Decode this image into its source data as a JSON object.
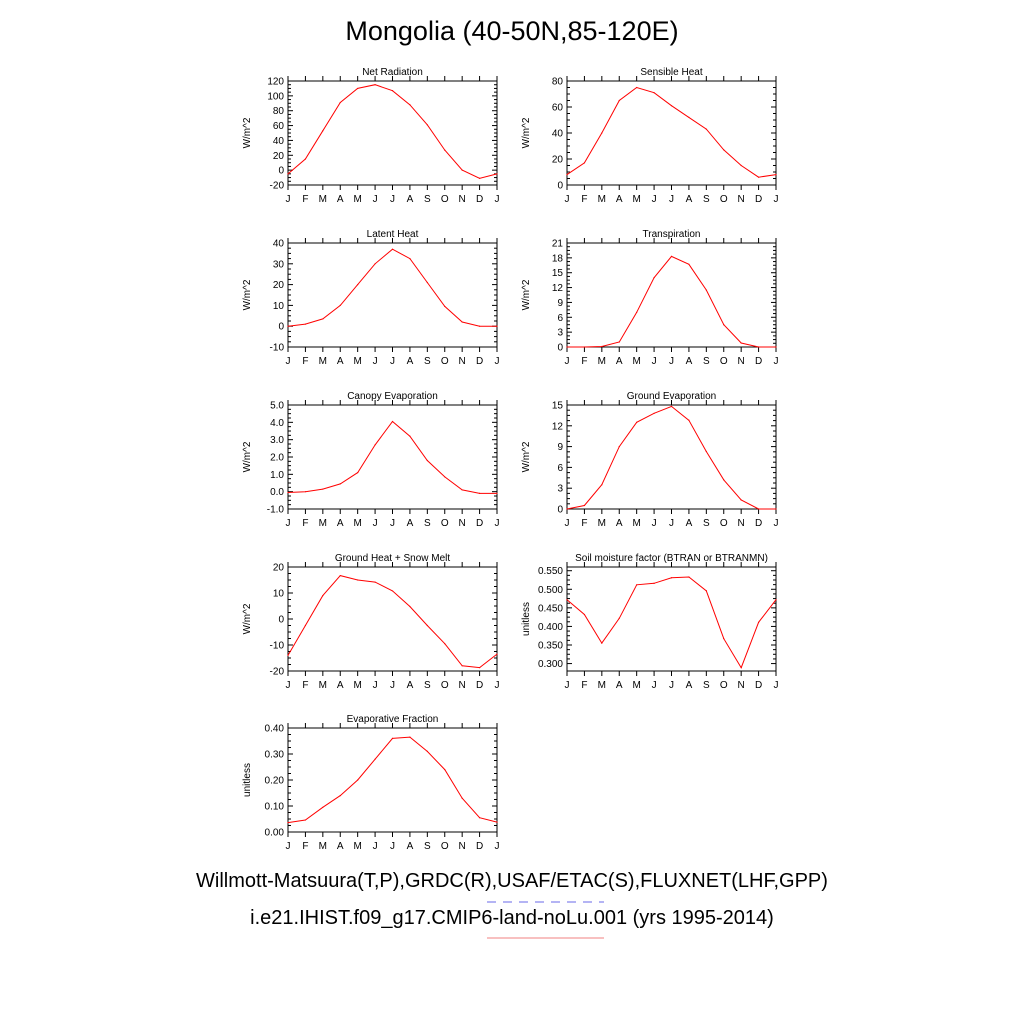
{
  "figure": {
    "title": "Mongolia (40-50N,85-120E)",
    "legend": [
      {
        "text": "Willmott-Matsuura(T,P),GRDC(R),USAF/ETAC(S),FLUXNET(LHF,GPP)",
        "line_color": "#6a6ae8",
        "dashed": true
      },
      {
        "text": "i.e21.IHIST.f09_g17.CMIP6-land-noLu.001 (yrs 1995-2014)",
        "line_color": "#f08080",
        "dashed": false
      }
    ],
    "series_color": "#ff0000"
  },
  "chart_data": [
    {
      "type": "line",
      "title": "Net Radiation",
      "ylabel": "W/m^2",
      "categories": [
        "J",
        "F",
        "M",
        "A",
        "M",
        "J",
        "J",
        "A",
        "S",
        "O",
        "N",
        "D",
        "J"
      ],
      "values": [
        -5,
        15,
        53,
        91,
        110,
        115,
        107,
        88,
        61,
        27,
        0,
        -11,
        -5
      ],
      "ylim": [
        -20,
        120
      ],
      "yticks": [
        "-20",
        "0",
        "20",
        "40",
        "60",
        "80",
        "100",
        "120"
      ]
    },
    {
      "type": "line",
      "title": "Sensible Heat",
      "ylabel": "W/m^2",
      "categories": [
        "J",
        "F",
        "M",
        "A",
        "M",
        "J",
        "J",
        "A",
        "S",
        "O",
        "N",
        "D",
        "J"
      ],
      "values": [
        8,
        17,
        40,
        65,
        75,
        71,
        61,
        52,
        43,
        27,
        15,
        6,
        8
      ],
      "ylim": [
        0,
        80
      ],
      "yticks": [
        "0",
        "20",
        "40",
        "60",
        "80"
      ]
    },
    {
      "type": "line",
      "title": "Latent Heat",
      "ylabel": "W/m^2",
      "categories": [
        "J",
        "F",
        "M",
        "A",
        "M",
        "J",
        "J",
        "A",
        "S",
        "O",
        "N",
        "D",
        "J"
      ],
      "values": [
        0,
        1,
        3.5,
        10,
        20,
        30,
        37,
        32.5,
        21,
        9.5,
        2,
        0,
        0
      ],
      "ylim": [
        -10,
        40
      ],
      "yticks": [
        "-10",
        "0",
        "10",
        "20",
        "30",
        "40"
      ]
    },
    {
      "type": "line",
      "title": "Transpiration",
      "ylabel": "W/m^2",
      "categories": [
        "J",
        "F",
        "M",
        "A",
        "M",
        "J",
        "J",
        "A",
        "S",
        "O",
        "N",
        "D",
        "J"
      ],
      "values": [
        0,
        0,
        0.1,
        1,
        7,
        14,
        18.3,
        16.7,
        11.5,
        4.5,
        0.8,
        0,
        0
      ],
      "ylim": [
        0,
        21
      ],
      "yticks": [
        "0",
        "3",
        "6",
        "9",
        "12",
        "15",
        "18",
        "21"
      ]
    },
    {
      "type": "line",
      "title": "Canopy Evaporation",
      "ylabel": "W/m^2",
      "categories": [
        "J",
        "F",
        "M",
        "A",
        "M",
        "J",
        "J",
        "A",
        "S",
        "O",
        "N",
        "D",
        "J"
      ],
      "values": [
        -0.05,
        0.0,
        0.15,
        0.45,
        1.1,
        2.7,
        4.05,
        3.2,
        1.8,
        0.85,
        0.1,
        -0.1,
        -0.1
      ],
      "ylim": [
        -1.0,
        5.0
      ],
      "yticks": [
        "-1.0",
        "0.0",
        "1.0",
        "2.0",
        "3.0",
        "4.0",
        "5.0"
      ]
    },
    {
      "type": "line",
      "title": "Ground Evaporation",
      "ylabel": "W/m^2",
      "categories": [
        "J",
        "F",
        "M",
        "A",
        "M",
        "J",
        "J",
        "A",
        "S",
        "O",
        "N",
        "D",
        "J"
      ],
      "values": [
        0,
        0.5,
        3.5,
        9,
        12.5,
        13.8,
        14.8,
        12.8,
        8.3,
        4.2,
        1.3,
        0,
        0
      ],
      "ylim": [
        0,
        15
      ],
      "yticks": [
        "0",
        "3",
        "6",
        "9",
        "12",
        "15"
      ]
    },
    {
      "type": "line",
      "title": "Ground Heat + Snow Melt",
      "ylabel": "W/m^2",
      "categories": [
        "J",
        "F",
        "M",
        "A",
        "M",
        "J",
        "J",
        "A",
        "S",
        "O",
        "N",
        "D",
        "J"
      ],
      "values": [
        -14,
        -2.5,
        9,
        16.7,
        15,
        14.2,
        10.8,
        4.8,
        -2.5,
        -9.5,
        -18,
        -18.7,
        -13.5
      ],
      "ylim": [
        -20,
        20
      ],
      "yticks": [
        "-20",
        "-10",
        "0",
        "10",
        "20"
      ]
    },
    {
      "type": "line",
      "title": "Soil moisture factor (BTRAN or BTRANMN)",
      "ylabel": "unitless",
      "categories": [
        "J",
        "F",
        "M",
        "A",
        "M",
        "J",
        "J",
        "A",
        "S",
        "O",
        "N",
        "D",
        "J"
      ],
      "values": [
        0.472,
        0.432,
        0.355,
        0.422,
        0.512,
        0.516,
        0.531,
        0.533,
        0.496,
        0.367,
        0.289,
        0.411,
        0.472
      ],
      "ylim": [
        0.28,
        0.56
      ],
      "yticks": [
        "0.300",
        "0.350",
        "0.400",
        "0.450",
        "0.500",
        "0.550"
      ]
    },
    {
      "type": "line",
      "title": "Evaporative Fraction",
      "ylabel": "unitless",
      "categories": [
        "J",
        "F",
        "M",
        "A",
        "M",
        "J",
        "J",
        "A",
        "S",
        "O",
        "N",
        "D",
        "J"
      ],
      "values": [
        0.036,
        0.046,
        0.095,
        0.14,
        0.2,
        0.28,
        0.36,
        0.365,
        0.31,
        0.24,
        0.13,
        0.055,
        0.038
      ],
      "ylim": [
        0.0,
        0.4
      ],
      "yticks": [
        "0.00",
        "0.10",
        "0.20",
        "0.30",
        "0.40"
      ]
    }
  ]
}
